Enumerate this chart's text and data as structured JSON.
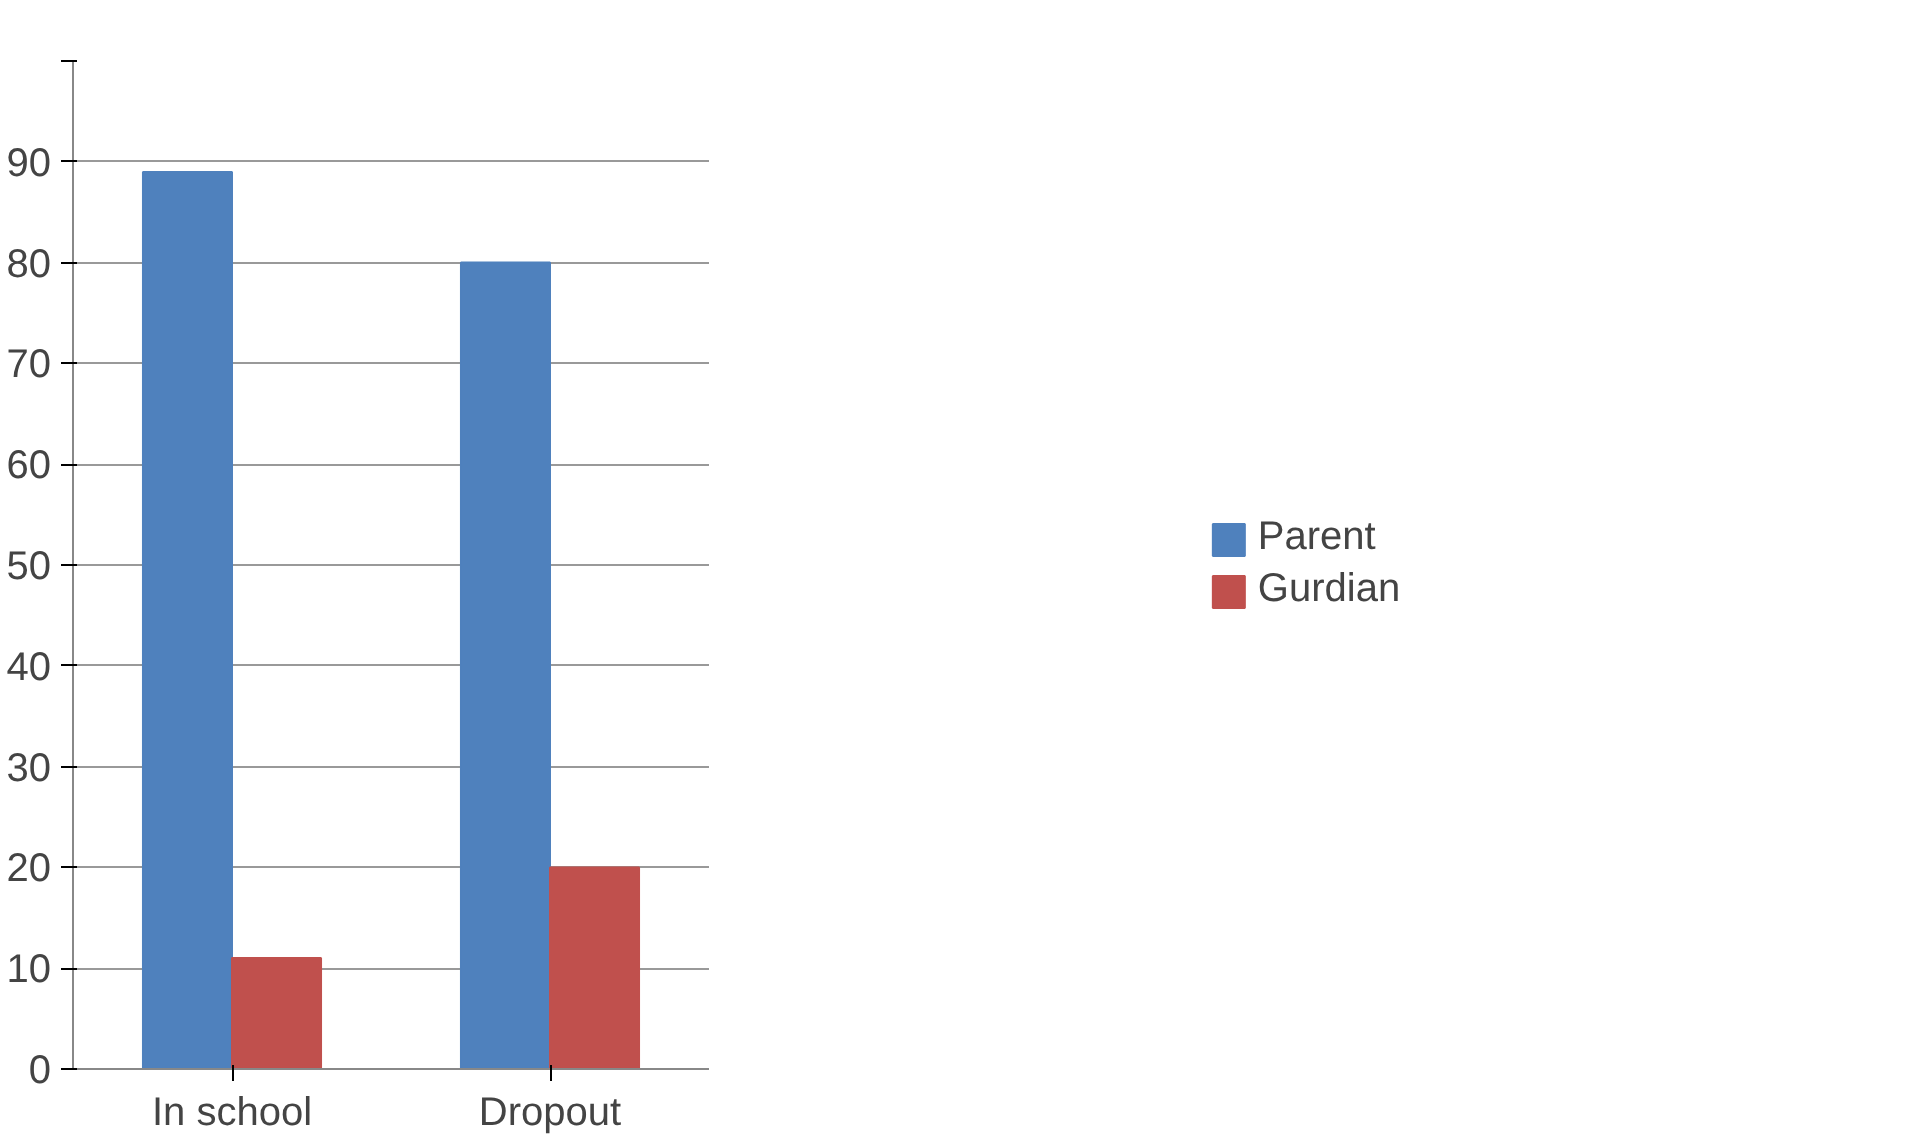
{
  "chart_data": {
    "type": "bar",
    "categories": [
      "In school",
      "Dropout"
    ],
    "series": [
      {
        "name": "Parent",
        "color": "#4f81bd",
        "values": [
          89,
          80
        ]
      },
      {
        "name": "Gurdian",
        "color": "#c0504d",
        "values": [
          11,
          20
        ]
      }
    ],
    "ylim": [
      0,
      100
    ],
    "yticks": [
      0,
      10,
      20,
      30,
      40,
      50,
      60,
      70,
      80,
      90,
      {
        "value": 100,
        "label": null
      }
    ],
    "grid": "y",
    "legend": "right"
  }
}
